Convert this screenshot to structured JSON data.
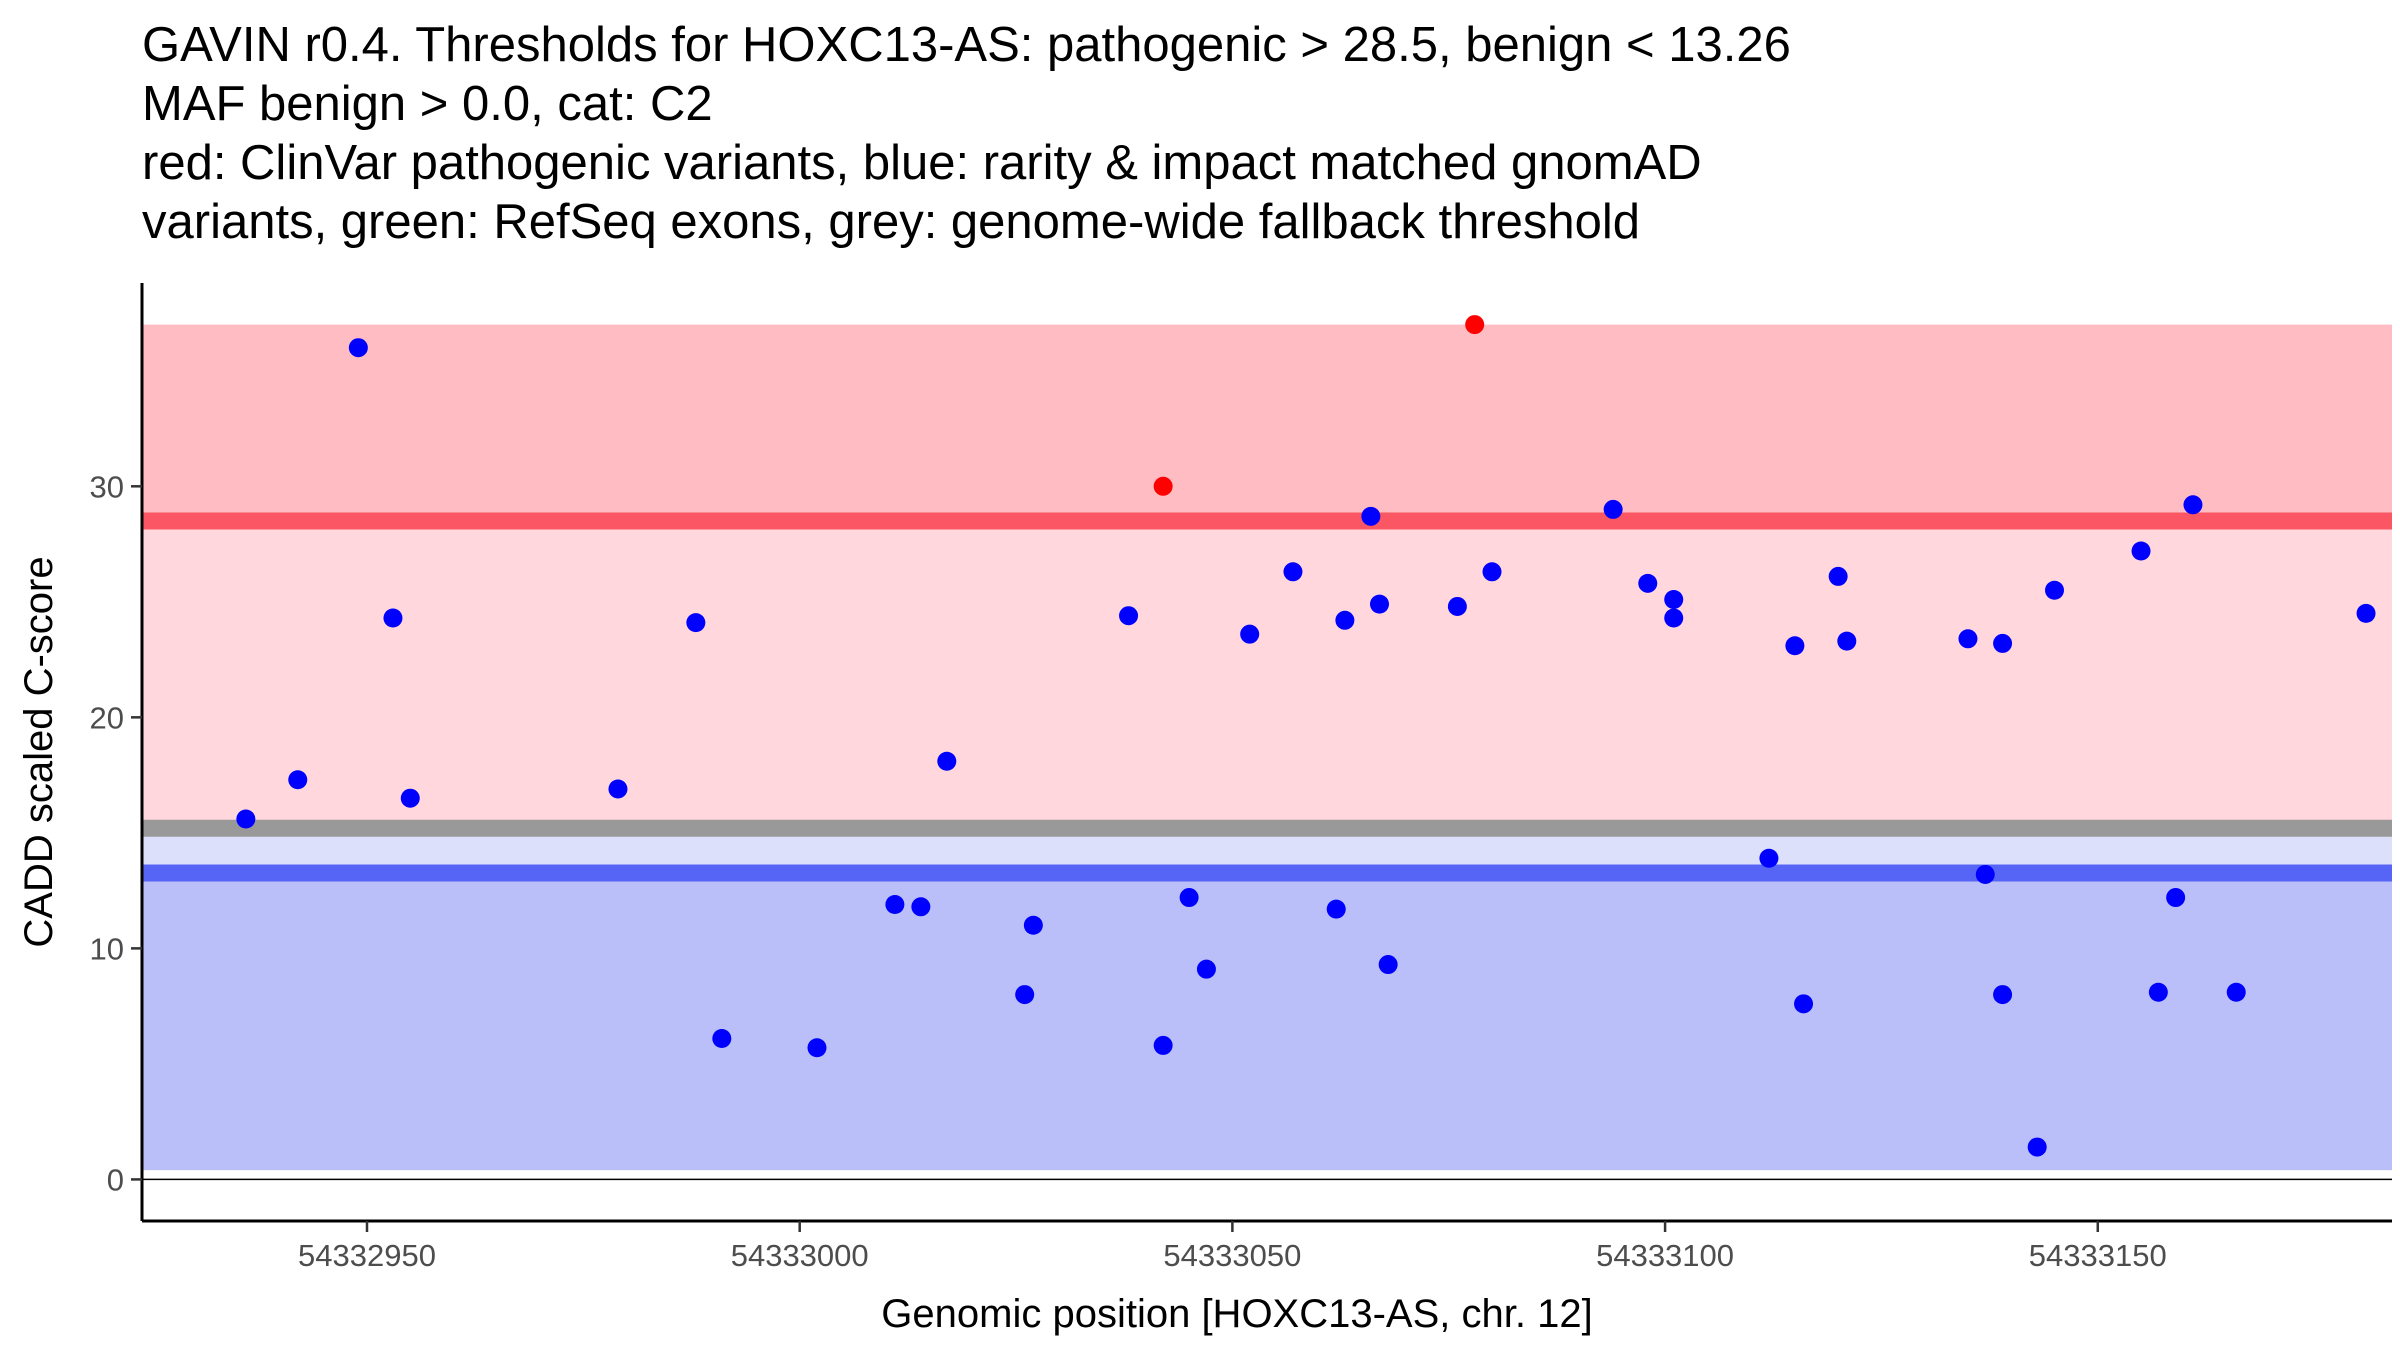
{
  "title_lines": [
    "GAVIN r0.4. Thresholds for HOXC13-AS: pathogenic > 28.5, benign < 13.26",
    "MAF benign > 0.0, cat: C2",
    "red: ClinVar pathogenic variants, blue: rarity & impact matched gnomAD",
    "variants, green: RefSeq exons, grey: genome-wide fallback threshold"
  ],
  "colors": {
    "pathogenic_variant": "#ff0000",
    "benign_variant": "#0000ff",
    "pathogenic_high_band": "#ffbcc2",
    "pathogenic_band": "#ffd7dc",
    "benign_light_band": "#dce0fb",
    "benign_band": "#babffa",
    "pathogenic_threshold_line": "#fb5664",
    "benign_threshold_line": "#5765f7",
    "fallback_threshold_line": "#999999"
  },
  "chart_data": {
    "type": "scatter",
    "title": "GAVIN r0.4. Thresholds for HOXC13-AS: pathogenic > 28.5, benign < 13.26",
    "xlabel": "Genomic position [HOXC13-AS, chr. 12]",
    "ylabel": "CADD scaled C-score",
    "xlim": [
      54332924,
      54333184
    ],
    "ylim": [
      -1.8,
      38.8
    ],
    "x_ticks": [
      54332950,
      54333000,
      54333050,
      54333100,
      54333150
    ],
    "x_tick_labels": [
      "54332950",
      "54333000",
      "54333050",
      "54333100",
      "54333150"
    ],
    "y_ticks": [
      0,
      10,
      20,
      30
    ],
    "y_tick_labels": [
      "0",
      "10",
      "20",
      "30"
    ],
    "thresholds": {
      "pathogenic": 28.5,
      "benign": 13.26,
      "genome_wide_fallback": 15.2
    },
    "bands": [
      {
        "name": "pathogenic-high",
        "y_from": 28.5,
        "y_to": 37.0,
        "color": "#ffbcc2"
      },
      {
        "name": "pathogenic",
        "y_from": 15.2,
        "y_to": 28.5,
        "color": "#ffd7dc"
      },
      {
        "name": "benign-light",
        "y_from": 13.26,
        "y_to": 15.2,
        "color": "#dce0fb"
      },
      {
        "name": "benign",
        "y_from": 0.4,
        "y_to": 13.26,
        "color": "#babffa"
      }
    ],
    "series": [
      {
        "name": "ClinVar pathogenic variants",
        "color": "#ff0000",
        "points": [
          {
            "x": 54333042,
            "y": 30.0
          },
          {
            "x": 54333078,
            "y": 37.0
          }
        ]
      },
      {
        "name": "rarity & impact matched gnomAD variants",
        "color": "#0000ff",
        "points": [
          {
            "x": 54332936,
            "y": 15.6
          },
          {
            "x": 54332942,
            "y": 17.3
          },
          {
            "x": 54332949,
            "y": 36.0
          },
          {
            "x": 54332953,
            "y": 24.3
          },
          {
            "x": 54332955,
            "y": 16.5
          },
          {
            "x": 54332979,
            "y": 16.9
          },
          {
            "x": 54332988,
            "y": 24.1
          },
          {
            "x": 54332991,
            "y": 6.1
          },
          {
            "x": 54333002,
            "y": 5.7
          },
          {
            "x": 54333011,
            "y": 11.9
          },
          {
            "x": 54333014,
            "y": 11.8
          },
          {
            "x": 54333017,
            "y": 18.1
          },
          {
            "x": 54333026,
            "y": 8.0
          },
          {
            "x": 54333027,
            "y": 11.0
          },
          {
            "x": 54333038,
            "y": 24.4
          },
          {
            "x": 54333042,
            "y": 5.8
          },
          {
            "x": 54333045,
            "y": 12.2
          },
          {
            "x": 54333047,
            "y": 9.1
          },
          {
            "x": 54333052,
            "y": 23.6
          },
          {
            "x": 54333057,
            "y": 26.3
          },
          {
            "x": 54333062,
            "y": 11.7
          },
          {
            "x": 54333063,
            "y": 24.2
          },
          {
            "x": 54333066,
            "y": 28.7
          },
          {
            "x": 54333067,
            "y": 24.9
          },
          {
            "x": 54333068,
            "y": 9.3
          },
          {
            "x": 54333076,
            "y": 24.8
          },
          {
            "x": 54333080,
            "y": 26.3
          },
          {
            "x": 54333094,
            "y": 29.0
          },
          {
            "x": 54333098,
            "y": 25.8
          },
          {
            "x": 54333101,
            "y": 25.1
          },
          {
            "x": 54333101,
            "y": 24.3
          },
          {
            "x": 54333112,
            "y": 13.9
          },
          {
            "x": 54333115,
            "y": 23.1
          },
          {
            "x": 54333116,
            "y": 7.6
          },
          {
            "x": 54333120,
            "y": 26.1
          },
          {
            "x": 54333121,
            "y": 23.3
          },
          {
            "x": 54333135,
            "y": 23.4
          },
          {
            "x": 54333137,
            "y": 13.2
          },
          {
            "x": 54333139,
            "y": 23.2
          },
          {
            "x": 54333139,
            "y": 8.0
          },
          {
            "x": 54333143,
            "y": 1.4
          },
          {
            "x": 54333145,
            "y": 25.5
          },
          {
            "x": 54333155,
            "y": 27.2
          },
          {
            "x": 54333157,
            "y": 8.1
          },
          {
            "x": 54333159,
            "y": 12.2
          },
          {
            "x": 54333161,
            "y": 29.2
          },
          {
            "x": 54333166,
            "y": 8.1
          },
          {
            "x": 54333181,
            "y": 24.5
          }
        ]
      }
    ]
  }
}
